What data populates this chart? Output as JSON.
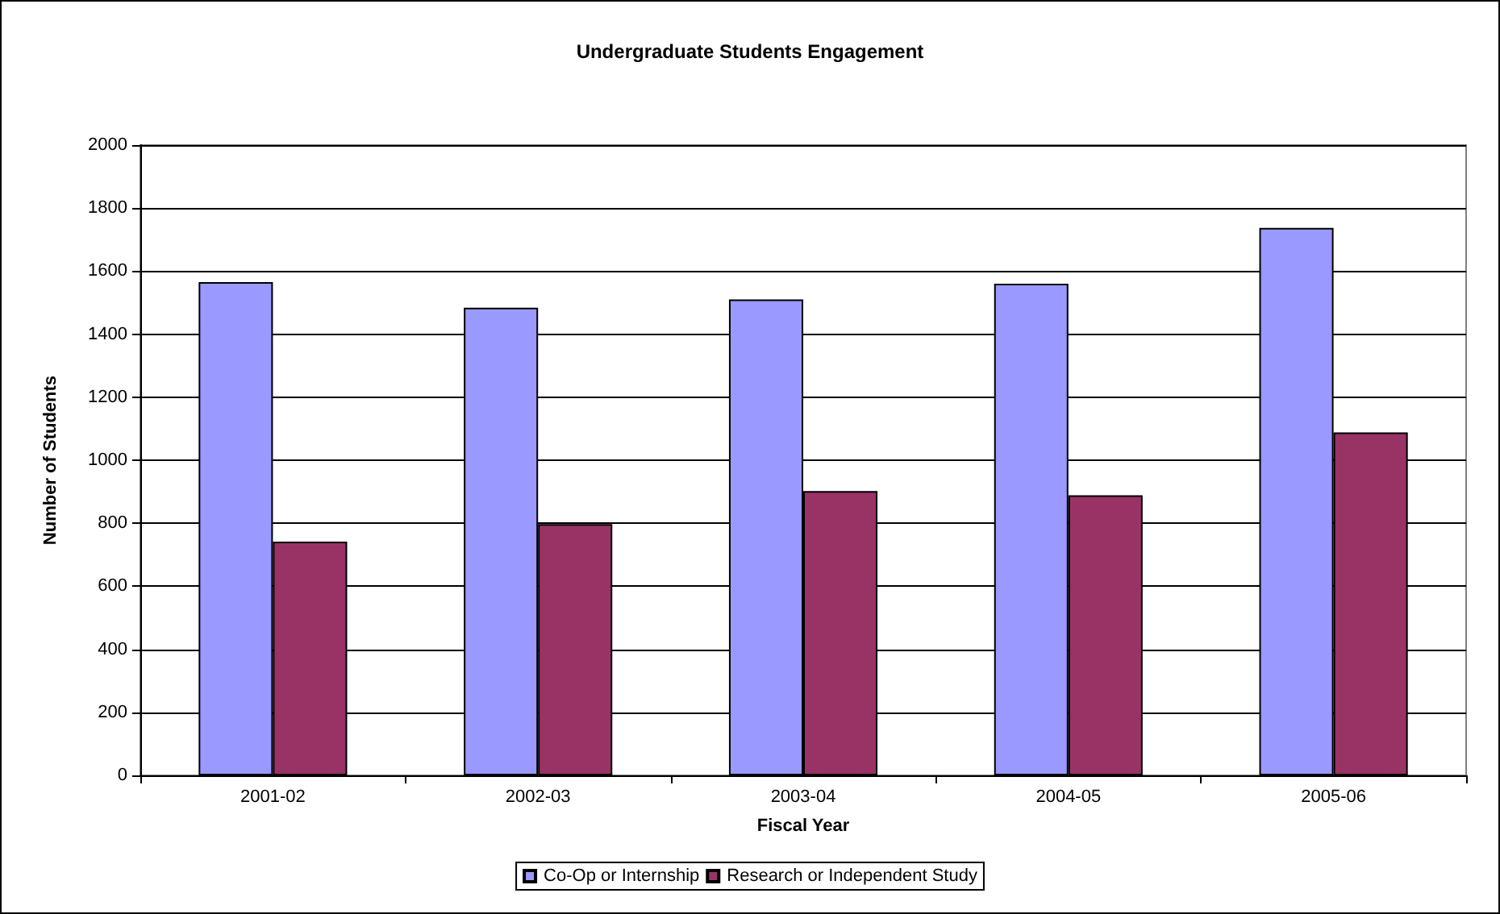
{
  "chart_data": {
    "type": "bar",
    "title": "Undergraduate Students Engagement",
    "xlabel": "Fiscal Year",
    "ylabel": "Number of Students",
    "categories": [
      "2001-02",
      "2002-03",
      "2003-04",
      "2004-05",
      "2005-06"
    ],
    "series": [
      {
        "name": "Co-Op or Internship",
        "color": "#9999ff",
        "values": [
          1565,
          1484,
          1510,
          1560,
          1737
        ]
      },
      {
        "name": "Research or Independent Study",
        "color": "#993366",
        "values": [
          742,
          797,
          902,
          889,
          1088
        ]
      }
    ],
    "ylim": [
      0,
      2000
    ],
    "yticks": [
      0,
      200,
      400,
      600,
      800,
      1000,
      1200,
      1400,
      1600,
      1800,
      2000
    ],
    "grid": "y",
    "legend": "bottom"
  }
}
